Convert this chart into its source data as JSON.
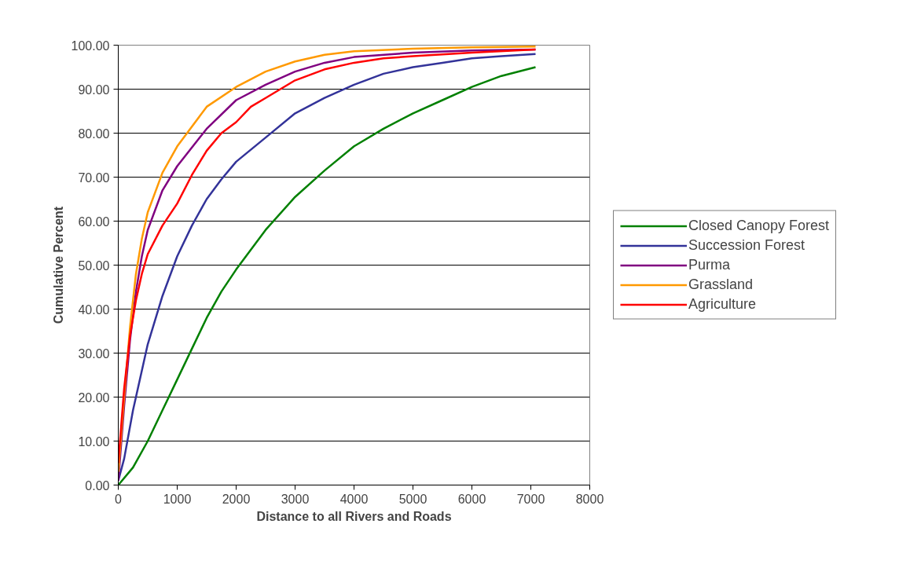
{
  "chart_data": {
    "type": "line",
    "xlabel": "Distance to all Rivers and Roads",
    "ylabel": "Cumulative Percent",
    "xlim": [
      0,
      8000
    ],
    "xticks": [
      0,
      1000,
      2000,
      3000,
      4000,
      5000,
      6000,
      7000,
      8000
    ],
    "ylim": [
      0,
      100
    ],
    "yticks": [
      {
        "value": 0,
        "label": "0.00"
      },
      {
        "value": 10,
        "label": "10.00"
      },
      {
        "value": 20,
        "label": "20.00"
      },
      {
        "value": 30,
        "label": "30.00"
      },
      {
        "value": 40,
        "label": "40.00"
      },
      {
        "value": 50,
        "label": "50.00"
      },
      {
        "value": 60,
        "label": "60.00"
      },
      {
        "value": 70,
        "label": "70.00"
      },
      {
        "value": 80,
        "label": "80.00"
      },
      {
        "value": 90,
        "label": "90.00"
      },
      {
        "value": 100,
        "label": "100.00"
      }
    ],
    "grid": "y",
    "legend": "right",
    "marker": "none",
    "series": [
      {
        "name": "Closed Canopy Forest",
        "color": "#008000",
        "x": [
          0,
          250,
          500,
          750,
          1000,
          1250,
          1500,
          1750,
          2000,
          2500,
          3000,
          3500,
          4000,
          4500,
          5000,
          5500,
          6000,
          6500,
          7080
        ],
        "values": [
          0,
          4,
          10,
          17,
          24,
          31,
          38,
          44,
          49,
          58,
          65.5,
          71.5,
          77,
          81,
          84.5,
          87.5,
          90.5,
          93,
          95
        ]
      },
      {
        "name": "Succession Forest",
        "color": "#333399",
        "x": [
          0,
          100,
          250,
          500,
          750,
          1000,
          1250,
          1500,
          1750,
          2000,
          2500,
          3000,
          3500,
          4000,
          4500,
          5000,
          5500,
          6000,
          6500,
          7080
        ],
        "values": [
          1,
          6,
          17,
          32,
          43,
          52,
          59,
          65,
          69.5,
          73.5,
          79,
          84.5,
          88,
          91,
          93.5,
          95,
          96,
          97,
          97.5,
          98
        ]
      },
      {
        "name": "Purma",
        "color": "#800080",
        "x": [
          0,
          100,
          200,
          300,
          400,
          500,
          750,
          1000,
          1500,
          2000,
          2500,
          3000,
          3500,
          4000,
          5000,
          6000,
          7080
        ],
        "values": [
          1,
          18,
          33,
          44,
          52,
          58,
          67,
          72.5,
          81,
          87.5,
          91,
          94,
          96,
          97.3,
          98.3,
          98.8,
          99
        ]
      },
      {
        "name": "Grassland",
        "color": "#ff9900",
        "x": [
          0,
          100,
          200,
          300,
          400,
          500,
          750,
          1000,
          1500,
          2000,
          2500,
          3000,
          3500,
          4000,
          5000,
          6000,
          7080
        ],
        "values": [
          3,
          20,
          36,
          48,
          56,
          62,
          71,
          77,
          86,
          90.5,
          94,
          96.3,
          97.8,
          98.6,
          99.2,
          99.5,
          99.7
        ]
      },
      {
        "name": "Agriculture",
        "color": "#ff0000",
        "x": [
          0,
          100,
          200,
          300,
          400,
          500,
          750,
          1000,
          1250,
          1500,
          1750,
          2000,
          2250,
          2500,
          3000,
          3500,
          4000,
          4500,
          5000,
          6000,
          7080
        ],
        "values": [
          5,
          22,
          34,
          42,
          48,
          52.5,
          59,
          64,
          70.5,
          76,
          80,
          82.5,
          86,
          88,
          92,
          94.5,
          96,
          97,
          97.5,
          98.3,
          99
        ]
      }
    ]
  }
}
